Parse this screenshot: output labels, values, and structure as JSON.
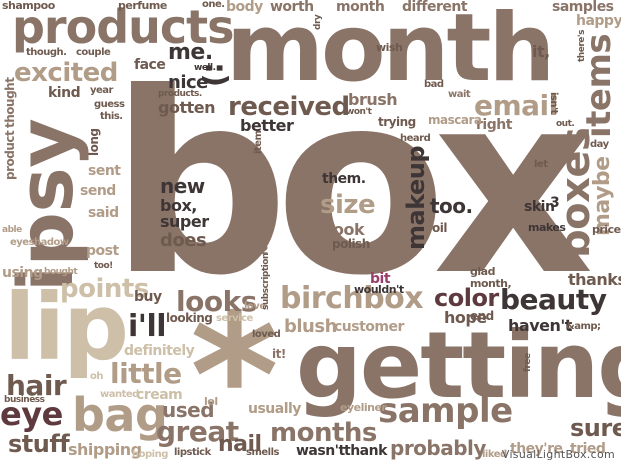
{
  "colors": {
    "taupe": "#8a7468",
    "tan": "#b19c88",
    "sand": "#cdbfa8",
    "mocha": "#6f5a4f",
    "dark": "#3e3636",
    "plum": "#5e3a3f",
    "magenta": "#9b3f6a",
    "pale": "#ddd3c6"
  },
  "words": {
    "box": "box",
    "getting": "getting",
    "month": "month",
    "products": "products",
    "ipsy": "ipsy",
    "lip": "lip",
    "boxes": "boxes",
    "sample": "sample",
    "birchbox": "birchbox",
    "beauty": "beauty",
    "bag": "bag",
    "months": "months",
    "great": "great",
    "received": "received",
    "email": "email",
    "items": "items",
    "excited": "excited",
    "makeup": "makeup",
    "looks": "looks",
    "color": "color",
    "little": "little",
    "points": "points",
    "hair": "hair",
    "eye": "eye",
    "stuff": "stuff",
    "sure": "sure",
    "size": "size",
    "new": "new",
    "box_comma": "box,",
    "super": "super",
    "does": "does",
    "i_ll": "i'll",
    "blush": "blush",
    "customer": "customer",
    "hope": "hope",
    "haven_t": "haven't",
    "probably": "probably",
    "used": "used",
    "nail": "nail",
    "usually": "usually",
    "wasn_t": "wasn't",
    "thank": "thank",
    "they_re": "they're",
    "tried": "tried",
    "definitely": "definitely",
    "cream": "cream",
    "shipping": "shipping",
    "buy": "buy",
    "looking": "looking",
    "maybe": "maybe",
    "thanks": "thanks",
    "too": "too.",
    "them": "them.",
    "look": "look",
    "polish": "polish",
    "me": "me.",
    "nice": "nice",
    "gotten": "gotten",
    "smiley": ":)",
    "better": "better",
    "brush": "brush",
    "worth": "worth",
    "body": "body",
    "different": "different",
    "samples": "samples",
    "happy": "happy",
    "face": "face",
    "kind": "kind",
    "send": "send",
    "sent": "sent",
    "said": "said",
    "post": "post",
    "using": "using",
    "eyeshadow": "eyeshadow",
    "eyeliner": "eyeliner",
    "lol": "lol",
    "lipstick": "lipstick",
    "hoping": "hoping",
    "smells": "smells",
    "liked": "liked",
    "end": "end",
    "skin": "skin",
    "three": "3",
    "makes": "makes",
    "price": "price",
    "bit": "bit",
    "wouldn_t": "wouldn't",
    "glad": "glad",
    "month_comma": "month,",
    "oil": "oil",
    "right": "right",
    "trying": "trying",
    "mascara": "mascara",
    "heard": "heard",
    "wait": "wait",
    "bad": "bad",
    "it_comma": "it,",
    "wish": "wish",
    "dry": "dry",
    "shampoo": "shampoo",
    "perfume": "perfume",
    "one": "one.",
    "though": "though.",
    "couple": "couple",
    "year": "year",
    "well": "well.",
    "products_dot": "products.",
    "guess": "guess",
    "this": "this.",
    "product": "product",
    "thought": "thought",
    "long": "long",
    "able": "able",
    "bought": "bought",
    "too_bang": "too!",
    "wanted": "wanted",
    "oh": "oh",
    "business": "business",
    "love": "love",
    "service": "service",
    "loved": "loved",
    "subscription": "subscription",
    "colon_two": ":2",
    "it_bang": "it!",
    "free": "free",
    "amp": "&amp;",
    "item": "item",
    "won_t": "won't",
    "isn_t": "isn't",
    "out": "out.",
    "day": "day",
    "let": "let",
    "there_s": "there's",
    "asterisk": "*",
    "watermark": "VisualLightBox.com"
  }
}
